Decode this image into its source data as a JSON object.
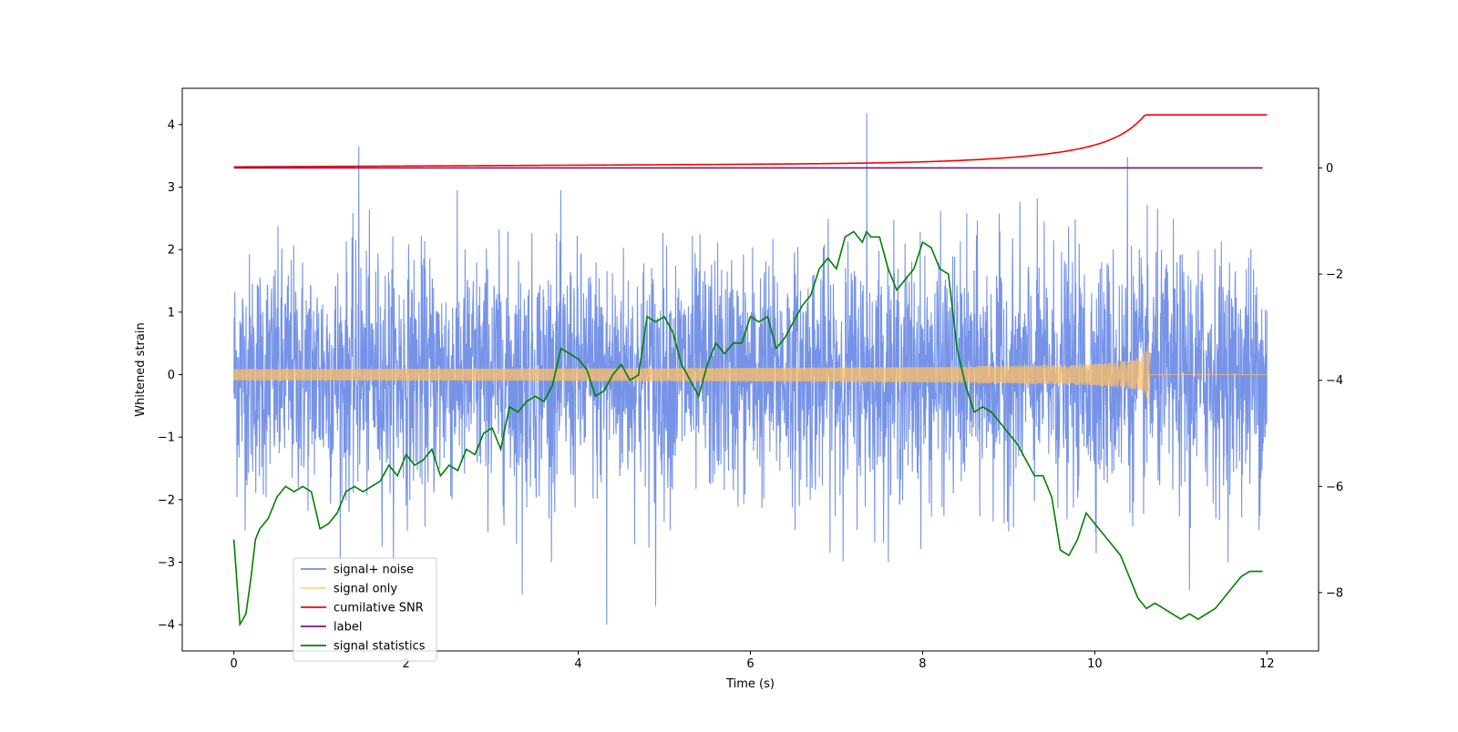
{
  "chart_data": {
    "type": "line",
    "title": "",
    "xlabel": "Time (s)",
    "ylabel": "Whitened strain",
    "y2label": "",
    "xlim": [
      -0.6,
      12.6
    ],
    "ylim": [
      -4.42,
      4.58
    ],
    "y2lim": [
      -9.1,
      1.5
    ],
    "x_ticks": [
      0,
      2,
      4,
      6,
      8,
      10,
      12
    ],
    "y_ticks": [
      -4,
      -3,
      -2,
      -1,
      0,
      1,
      2,
      3,
      4
    ],
    "y2_ticks": [
      -8,
      -6,
      -4,
      -2,
      0
    ],
    "grid": false,
    "legend_position": "lower-left",
    "series": [
      {
        "name": "signal+ noise",
        "axis": "left",
        "color": "#6f8de6",
        "style": "noise",
        "x_range": [
          0,
          12
        ],
        "envelope": [
          2.6,
          -2.6
        ],
        "spikes": [
          {
            "x": 1.45,
            "y": 3.65
          },
          {
            "x": 7.35,
            "y": 4.18
          },
          {
            "x": 10.38,
            "y": 3.48
          },
          {
            "x": 4.33,
            "y": -4.0
          },
          {
            "x": 4.9,
            "y": -3.7
          },
          {
            "x": 3.35,
            "y": -3.52
          },
          {
            "x": 11.1,
            "y": -3.45
          }
        ]
      },
      {
        "name": "signal only",
        "axis": "left",
        "color": "#ffbf66",
        "style": "chirp",
        "x_range": [
          0,
          12
        ],
        "merger_time": 10.63,
        "peak_amplitude": 0.72
      },
      {
        "name": "cumilative SNR",
        "axis": "right",
        "color": "#ff0000",
        "style": "line",
        "x": [
          0,
          1,
          2,
          3,
          4,
          5,
          6,
          7,
          8,
          8.5,
          9,
          9.5,
          10,
          10.2,
          10.4,
          10.55,
          10.63,
          12
        ],
        "y": [
          0.02,
          0.05,
          0.08,
          0.11,
          0.14,
          0.17,
          0.22,
          0.28,
          0.36,
          0.42,
          0.5,
          0.6,
          0.75,
          0.83,
          0.93,
          1.03,
          1.0,
          1.0
        ]
      },
      {
        "name": "label",
        "axis": "right",
        "color": "#7b1577",
        "style": "line",
        "x": [
          0,
          11.95
        ],
        "y": [
          0,
          0
        ]
      },
      {
        "name": "signal statistics",
        "axis": "right",
        "color": "#008000",
        "style": "line",
        "x": [
          0,
          0.07,
          0.14,
          0.2,
          0.25,
          0.3,
          0.4,
          0.5,
          0.6,
          0.7,
          0.8,
          0.9,
          1.0,
          1.1,
          1.2,
          1.3,
          1.4,
          1.5,
          1.6,
          1.7,
          1.8,
          1.9,
          2.0,
          2.1,
          2.2,
          2.3,
          2.4,
          2.5,
          2.6,
          2.7,
          2.8,
          2.9,
          3.0,
          3.1,
          3.2,
          3.3,
          3.4,
          3.5,
          3.6,
          3.7,
          3.8,
          3.9,
          4.0,
          4.1,
          4.2,
          4.3,
          4.4,
          4.5,
          4.6,
          4.7,
          4.8,
          4.9,
          5.0,
          5.1,
          5.2,
          5.3,
          5.4,
          5.5,
          5.6,
          5.7,
          5.8,
          5.9,
          6.0,
          6.1,
          6.2,
          6.3,
          6.4,
          6.5,
          6.6,
          6.7,
          6.8,
          6.9,
          7.0,
          7.1,
          7.2,
          7.3,
          7.35,
          7.4,
          7.5,
          7.6,
          7.7,
          7.8,
          7.9,
          8.0,
          8.1,
          8.2,
          8.3,
          8.4,
          8.5,
          8.6,
          8.7,
          8.8,
          8.9,
          9.0,
          9.1,
          9.2,
          9.3,
          9.4,
          9.5,
          9.6,
          9.7,
          9.8,
          9.9,
          10.0,
          10.1,
          10.2,
          10.3,
          10.4,
          10.5,
          10.6,
          10.7,
          10.8,
          10.9,
          11.0,
          11.1,
          11.2,
          11.3,
          11.4,
          11.5,
          11.6,
          11.7,
          11.8,
          11.95
        ],
        "y": [
          -7.0,
          -8.6,
          -8.4,
          -7.7,
          -7.0,
          -6.8,
          -6.6,
          -6.2,
          -6.0,
          -6.1,
          -6.0,
          -6.1,
          -6.8,
          -6.7,
          -6.5,
          -6.1,
          -6.0,
          -6.1,
          -6.0,
          -5.9,
          -5.6,
          -5.8,
          -5.4,
          -5.6,
          -5.5,
          -5.3,
          -5.8,
          -5.6,
          -5.7,
          -5.3,
          -5.4,
          -5.0,
          -4.9,
          -5.3,
          -4.5,
          -4.6,
          -4.4,
          -4.3,
          -4.4,
          -4.1,
          -3.4,
          -3.5,
          -3.6,
          -3.8,
          -4.3,
          -4.2,
          -3.9,
          -3.7,
          -4.0,
          -3.9,
          -2.8,
          -2.9,
          -2.8,
          -3.1,
          -3.7,
          -4.0,
          -4.3,
          -3.7,
          -3.3,
          -3.5,
          -3.3,
          -3.3,
          -2.8,
          -2.9,
          -2.8,
          -3.4,
          -3.2,
          -2.9,
          -2.6,
          -2.4,
          -1.9,
          -1.7,
          -1.9,
          -1.3,
          -1.2,
          -1.4,
          -1.2,
          -1.3,
          -1.3,
          -1.9,
          -2.3,
          -2.1,
          -1.9,
          -1.4,
          -1.5,
          -1.9,
          -2.0,
          -3.4,
          -4.1,
          -4.6,
          -4.5,
          -4.6,
          -4.8,
          -5.0,
          -5.2,
          -5.5,
          -5.8,
          -5.8,
          -6.2,
          -7.2,
          -7.3,
          -7.0,
          -6.5,
          -6.7,
          -6.9,
          -7.1,
          -7.3,
          -7.7,
          -8.1,
          -8.3,
          -8.2,
          -8.3,
          -8.4,
          -8.5,
          -8.4,
          -8.5,
          -8.4,
          -8.3,
          -8.1,
          -7.9,
          -7.7,
          -7.6,
          -7.6
        ]
      }
    ]
  }
}
